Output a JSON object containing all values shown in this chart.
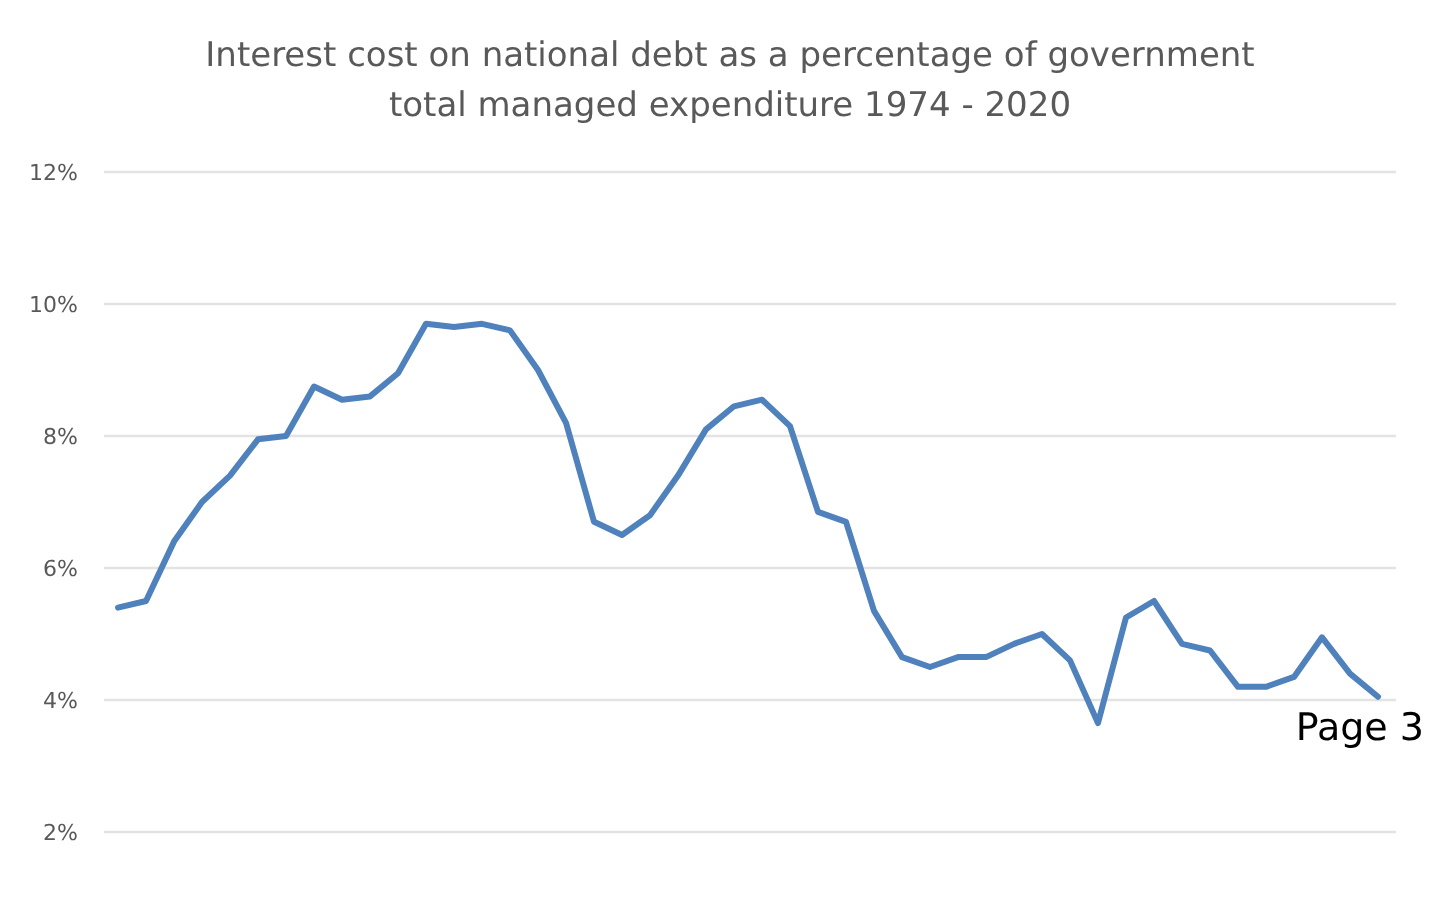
{
  "chart_data": {
    "type": "line",
    "title": "Interest cost on national debt as a percentage of government total managed expenditure 1974 - 2020",
    "categories": [
      null,
      null,
      null,
      null,
      null,
      null,
      null,
      null,
      null,
      null,
      null,
      null,
      null,
      null,
      null,
      null,
      null,
      null,
      null,
      null,
      null,
      null,
      null,
      null,
      null,
      null,
      null,
      null,
      null,
      null,
      null,
      null,
      null,
      null,
      null,
      null,
      null,
      null,
      null,
      null,
      null,
      null,
      null,
      null,
      null,
      null
    ],
    "series": [
      {
        "color": "#4f81bd",
        "values": [
          5.4,
          5.5,
          6.4,
          7.0,
          7.4,
          7.95,
          8.0,
          8.75,
          8.55,
          8.6,
          8.95,
          9.7,
          9.65,
          9.7,
          9.6,
          9.0,
          8.2,
          6.7,
          6.5,
          6.8,
          7.4,
          8.1,
          8.45,
          8.55,
          8.15,
          6.85,
          6.7,
          5.35,
          4.65,
          4.5,
          4.65,
          4.65,
          4.85,
          5.0,
          4.6,
          3.65,
          5.25,
          5.5,
          4.85,
          4.75,
          4.2,
          4.2,
          4.35,
          4.95,
          4.4,
          4.05
        ]
      }
    ],
    "ylim": [
      2,
      12
    ],
    "yticks": [
      {
        "value": 2,
        "label": "2%"
      },
      {
        "value": 4,
        "label": "4%"
      },
      {
        "value": 6,
        "label": "6%"
      },
      {
        "value": 8,
        "label": "8%"
      },
      {
        "value": 10,
        "label": "10%"
      },
      {
        "value": 12,
        "label": "12%"
      }
    ],
    "grid": "y",
    "tick_labels": "y",
    "marker": "none",
    "line_style": "solid",
    "annotations": [
      "Page 3"
    ]
  }
}
